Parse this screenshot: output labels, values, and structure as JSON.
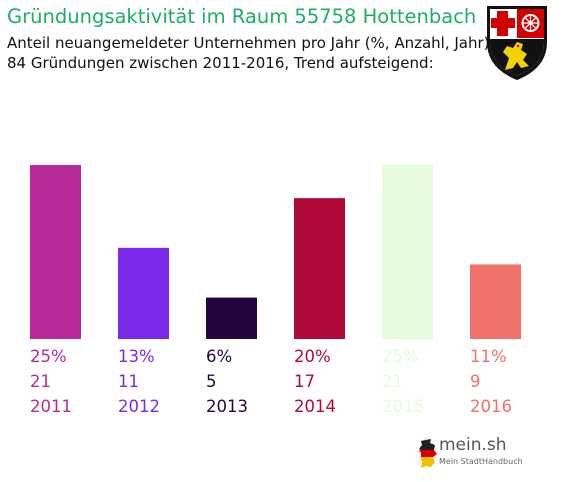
{
  "header": {
    "title": "Gründungsaktivität im Raum 55758 Hottenbach",
    "subtitle": "Anteil neuangemeldeter Unternehmen pro Jahr (%, Anzahl, Jahr)",
    "subtitle2": "84 Gründungen zwischen 2011-2016, Trend aufsteigend:"
  },
  "logo": {
    "name": "mein.sh",
    "tagline": "Mein StadtHandbuch",
    "icon": "germany-map-icon"
  },
  "crest": {
    "icon": "rheinland-pfalz-coat-of-arms-icon"
  },
  "chart_data": {
    "type": "bar",
    "categories": [
      "2011",
      "2012",
      "2013",
      "2014",
      "2015",
      "2016"
    ],
    "percent_labels": [
      "25%",
      "13%",
      "6%",
      "20%",
      "25%",
      "11%"
    ],
    "count_labels": [
      "21",
      "11",
      "5",
      "17",
      "21",
      "9"
    ],
    "values": [
      21,
      11,
      5,
      17,
      21,
      9
    ],
    "colors": [
      "#b8299a",
      "#7b2aec",
      "#230640",
      "#b00a38",
      "#e6fbde",
      "#f0706a"
    ],
    "ylim": [
      0,
      21
    ],
    "grid": false,
    "legend": "none"
  }
}
